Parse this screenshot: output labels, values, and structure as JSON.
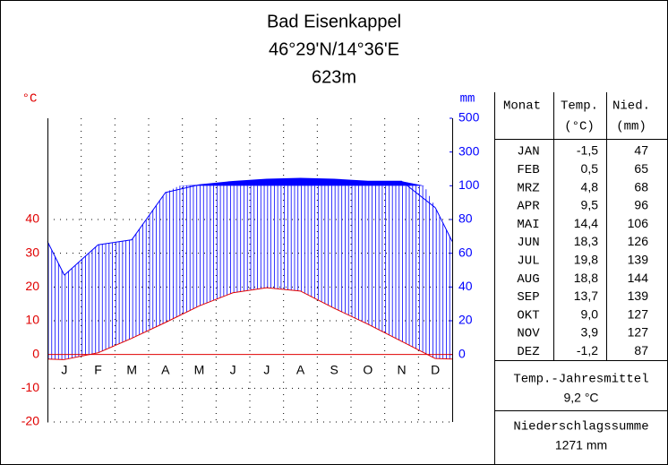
{
  "chart_data": {
    "type": "climate",
    "title": "Bad Eisenkappel",
    "subtitle": "46°29'N/14°36'E",
    "elevation": "623m",
    "ylabel": "°C",
    "y2label": "mm",
    "categories": [
      "J",
      "F",
      "M",
      "A",
      "M",
      "J",
      "J",
      "A",
      "S",
      "O",
      "N",
      "D"
    ],
    "series": [
      {
        "name": "Temp.",
        "color": "#e00000",
        "values": [
          -1.5,
          0.5,
          4.8,
          9.5,
          14.4,
          18.3,
          19.8,
          18.8,
          13.7,
          9.0,
          3.9,
          -1.2
        ],
        "value_labels": [
          "-1,5",
          "0,5",
          "4,8",
          "9,5",
          "14,4",
          "18,3",
          "19,8",
          "18,8",
          "13,7",
          "9,0",
          "3,9",
          "-1,2"
        ]
      },
      {
        "name": "Nied.",
        "color": "#0000ff",
        "axis": "y2",
        "values": [
          47,
          65,
          68,
          96,
          106,
          126,
          139,
          144,
          139,
          127,
          127,
          87
        ]
      }
    ],
    "ylim": [
      -20,
      70
    ],
    "yticks": [
      -20,
      -10,
      0,
      10,
      20,
      30,
      40
    ],
    "y2lim": [
      -40,
      500
    ],
    "y2ticks": [
      0,
      20,
      40,
      60,
      80,
      100,
      300,
      500
    ],
    "y2_break": 100,
    "grid": true
  },
  "table": {
    "header": [
      "Monat",
      "Temp.",
      "(°C)",
      "Nied.",
      "(mm)"
    ],
    "months": [
      "JAN",
      "FEB",
      "MRZ",
      "APR",
      "MAI",
      "JUN",
      "JUL",
      "AUG",
      "SEP",
      "OKT",
      "NOV",
      "DEZ"
    ],
    "annual_temp_label": "Temp.-Jahresmittel",
    "annual_temp": "9,2 °C",
    "annual_precip_label": "Niederschlagssumme",
    "annual_precip": "1271 mm"
  }
}
